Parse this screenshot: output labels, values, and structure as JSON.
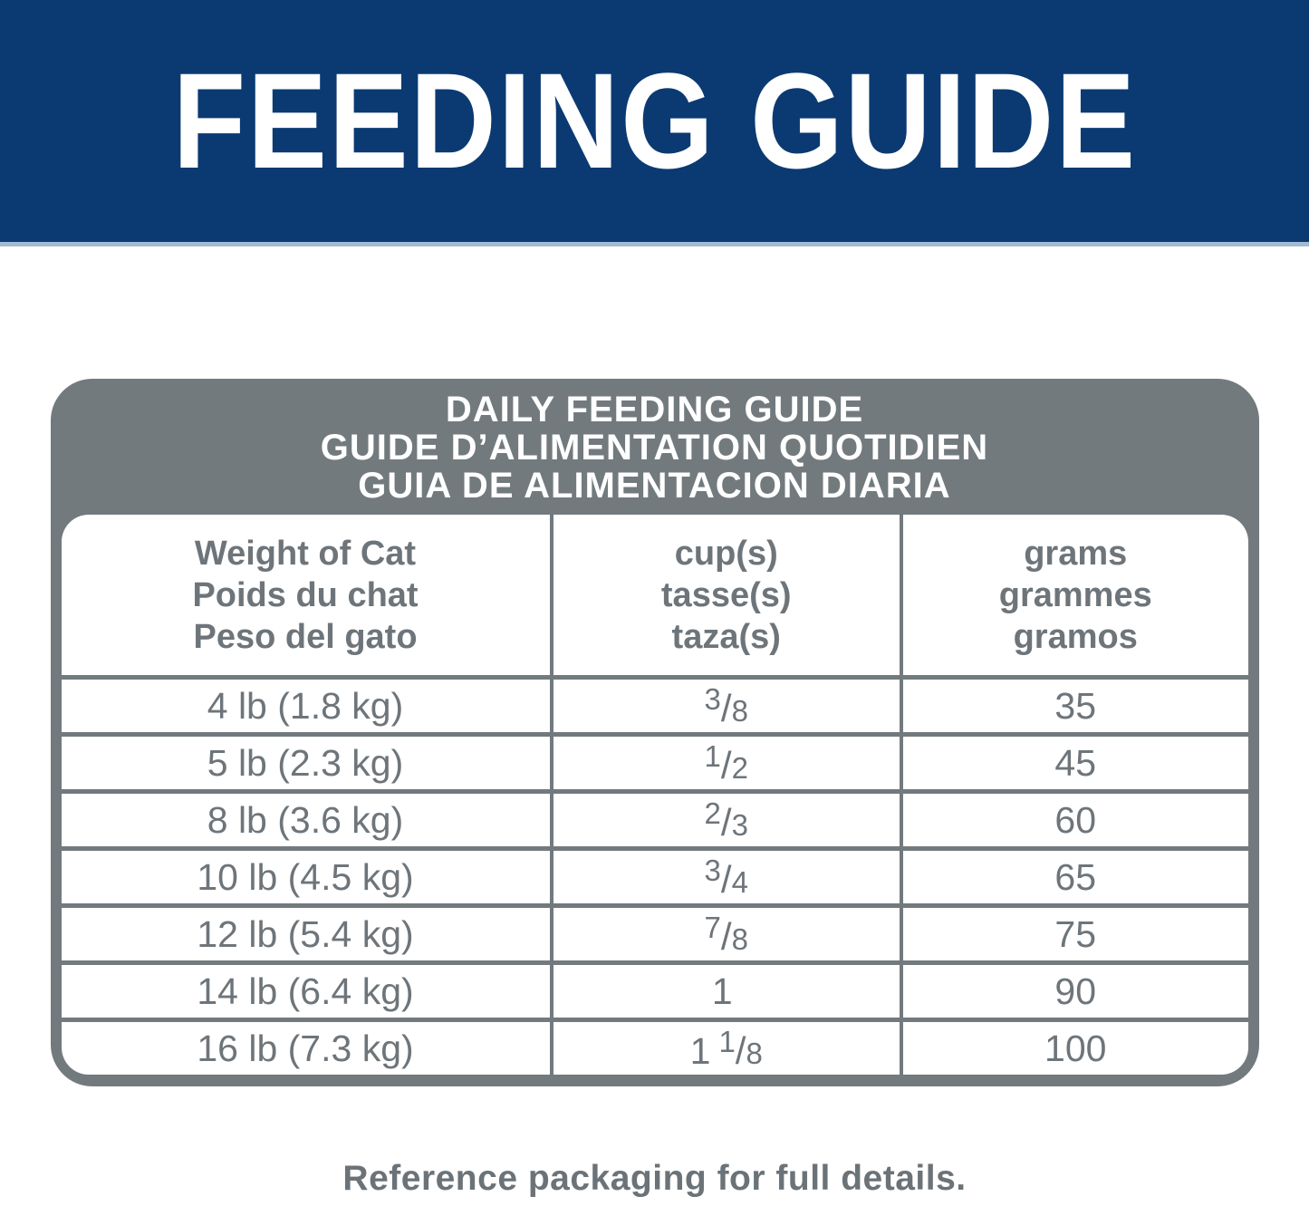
{
  "banner": {
    "title": "FEEDING GUIDE",
    "background_color": "#0B3A72",
    "underline_color": "#A3BAD3",
    "text_color": "#FFFFFF"
  },
  "card": {
    "frame_color": "#727A7E",
    "text_color": "#6E757A",
    "title_lines": [
      "DAILY FEEDING GUIDE",
      "GUIDE D’ALIMENTATION QUOTIDIEN",
      "GUIA DE ALIMENTACION DIARIA"
    ]
  },
  "table": {
    "columns": [
      {
        "lines": [
          "Weight of Cat",
          "Poids du chat",
          "Peso del gato"
        ]
      },
      {
        "lines": [
          "cup(s)",
          "tasse(s)",
          "taza(s)"
        ]
      },
      {
        "lines": [
          "grams",
          "grammes",
          "gramos"
        ]
      }
    ],
    "rows": [
      {
        "weight": "4 lb (1.8 kg)",
        "cups_whole": "",
        "cups_num": "3",
        "cups_den": "8",
        "grams": "35"
      },
      {
        "weight": "5 lb (2.3 kg)",
        "cups_whole": "",
        "cups_num": "1",
        "cups_den": "2",
        "grams": "45"
      },
      {
        "weight": "8 lb (3.6 kg)",
        "cups_whole": "",
        "cups_num": "2",
        "cups_den": "3",
        "grams": "60"
      },
      {
        "weight": "10 lb (4.5 kg)",
        "cups_whole": "",
        "cups_num": "3",
        "cups_den": "4",
        "grams": "65"
      },
      {
        "weight": "12 lb (5.4 kg)",
        "cups_whole": "",
        "cups_num": "7",
        "cups_den": "8",
        "grams": "75"
      },
      {
        "weight": "14 lb (6.4 kg)",
        "cups_whole": "1",
        "cups_num": "",
        "cups_den": "",
        "grams": "90"
      },
      {
        "weight": "16 lb (7.3 kg)",
        "cups_whole": "1",
        "cups_num": "1",
        "cups_den": "8",
        "grams": "100"
      }
    ]
  },
  "footer": {
    "note": "Reference packaging for full details."
  }
}
